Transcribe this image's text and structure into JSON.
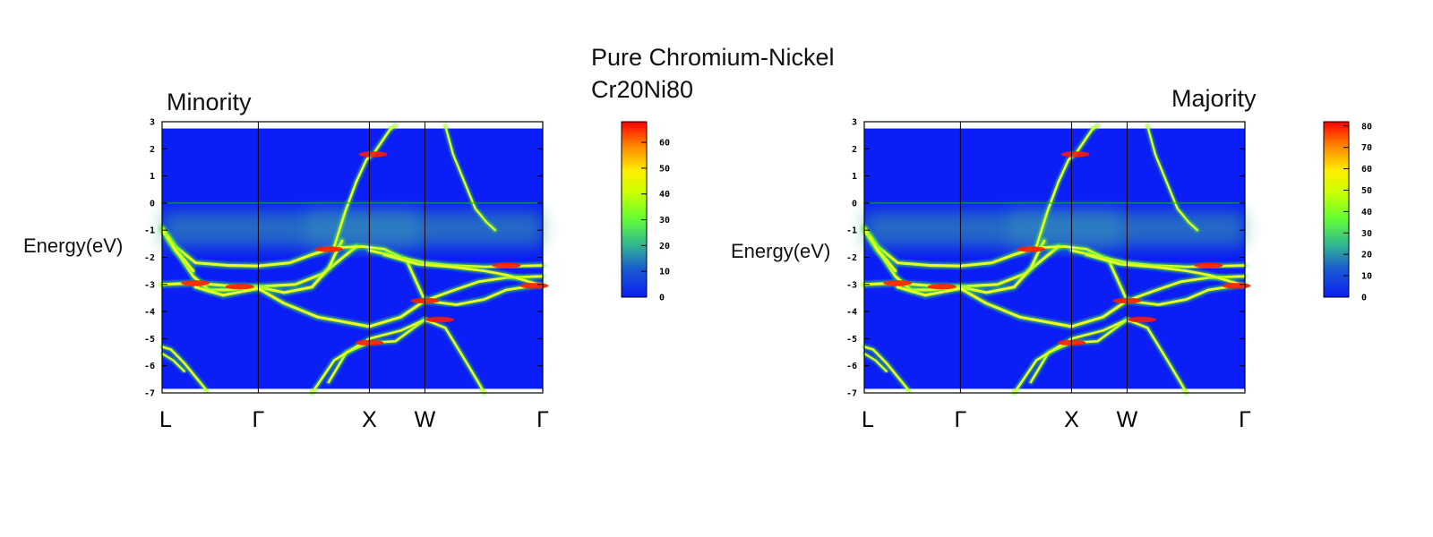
{
  "title_line1": "Pure Chromium-Nickel",
  "title_line2": "Cr20Ni80",
  "chart_data": [
    {
      "type": "heatmap",
      "title": "Minority",
      "ylabel": "Energy(eV)",
      "xlabel": "",
      "ylim": [
        -7,
        3
      ],
      "yticks": [
        3,
        2,
        1,
        0,
        -1,
        -2,
        -3,
        -4,
        -5,
        -6,
        -7
      ],
      "kpoints": [
        "L",
        "Γ",
        "X",
        "W",
        "Γ"
      ],
      "kpoint_positions": [
        0,
        0.866,
        1.866,
        2.366,
        3.427
      ],
      "fermi_level": 0,
      "colorbar": {
        "min": 0,
        "max": 68,
        "ticks": [
          0,
          10,
          20,
          30,
          40,
          50,
          60
        ]
      },
      "colors": {
        "background": "#0a1ef5",
        "fermi_line": "#00c000",
        "high": "#ff0000",
        "mid": "#ffff00",
        "low": "#00ff00"
      }
    },
    {
      "type": "heatmap",
      "title": "Majority",
      "ylabel": "Energy(eV)",
      "xlabel": "",
      "ylim": [
        -7,
        3
      ],
      "yticks": [
        3,
        2,
        1,
        0,
        -1,
        -2,
        -3,
        -4,
        -5,
        -6,
        -7
      ],
      "kpoints": [
        "L",
        "Γ",
        "X",
        "W",
        "Γ"
      ],
      "kpoint_positions": [
        0,
        0.866,
        1.866,
        2.366,
        3.427
      ],
      "fermi_level": 0,
      "colorbar": {
        "min": 0,
        "max": 82,
        "ticks": [
          0,
          10,
          20,
          30,
          40,
          50,
          60,
          70,
          80
        ]
      },
      "colors": {
        "background": "#0a1ef5",
        "fermi_line": "#00c000",
        "high": "#ff0000",
        "mid": "#ffff00",
        "low": "#00ff00"
      }
    }
  ]
}
